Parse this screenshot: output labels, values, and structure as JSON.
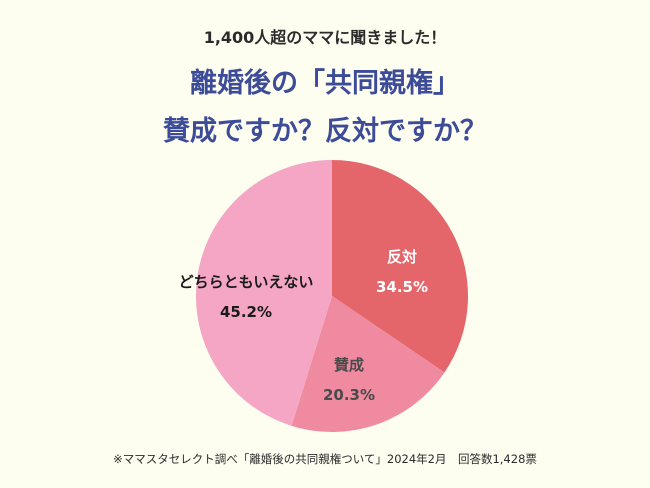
{
  "header": {
    "subtitle": "1,400人超のママに聞きました！",
    "title_line1": "離婚後の「共同親権」",
    "title_line2": "賛成ですか？反対ですか？"
  },
  "chart_data": {
    "type": "pie",
    "slices": [
      {
        "label": "反対",
        "value": 34.5,
        "display": "34.5%",
        "color": "#e4666b",
        "label_color": "#ffffff"
      },
      {
        "label": "賛成",
        "value": 20.3,
        "display": "20.3%",
        "color": "#ef8aa0",
        "label_color": "#4a4a4a"
      },
      {
        "label": "どちらともいえない",
        "value": 45.2,
        "display": "45.2%",
        "color": "#f4a6c4",
        "label_color": "#1a1a1a"
      }
    ]
  },
  "footer": {
    "note": "※ママスタセレクト調べ「離婚後の共同親権ついて」2024年2月　回答数1,428票"
  }
}
